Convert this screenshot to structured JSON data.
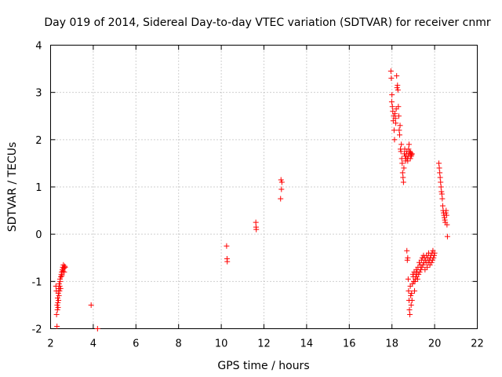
{
  "chart_data": {
    "type": "scatter",
    "title": "Day 019 of 2014, Sidereal Day-to-day VTEC variation (SDTVAR) for receiver cnmr",
    "xlabel": "GPS time / hours",
    "ylabel": "SDTVAR / TECUs",
    "xlim": [
      2,
      22
    ],
    "ylim": [
      -2,
      4
    ],
    "xticks": [
      "2",
      "4",
      "6",
      "8",
      "10",
      "12",
      "14",
      "16",
      "18",
      "20",
      "22"
    ],
    "yticks": [
      "-2",
      "-1",
      "0",
      "1",
      "2",
      "3",
      "4"
    ],
    "grid": true,
    "marker": "+",
    "color": "#ff0000",
    "series": [
      {
        "name": "SDTVAR",
        "x": [
          2.25,
          2.27,
          2.28,
          2.3,
          2.31,
          2.32,
          2.33,
          2.34,
          2.35,
          2.36,
          2.37,
          2.38,
          2.39,
          2.4,
          2.42,
          2.43,
          2.44,
          2.45,
          2.47,
          2.48,
          2.5,
          2.52,
          2.53,
          2.55,
          2.57,
          2.58,
          2.6,
          2.62,
          2.64,
          2.66,
          2.68,
          3.9,
          4.2,
          10.25,
          10.27,
          10.28,
          11.62,
          11.63,
          11.64,
          12.78,
          12.8,
          12.82,
          12.84,
          17.95,
          17.97,
          17.99,
          18.0,
          18.02,
          18.04,
          18.06,
          18.08,
          18.1,
          18.12,
          18.14,
          18.16,
          18.18,
          18.2,
          18.22,
          18.24,
          18.26,
          18.28,
          18.3,
          18.32,
          18.34,
          18.36,
          18.38,
          18.4,
          18.42,
          18.44,
          18.46,
          18.48,
          18.5,
          18.52,
          18.54,
          18.56,
          18.58,
          18.6,
          18.62,
          18.64,
          18.66,
          18.68,
          18.7,
          18.72,
          18.74,
          18.76,
          18.78,
          18.8,
          18.82,
          18.84,
          18.86,
          18.88,
          18.9,
          18.92,
          18.94,
          18.7,
          18.72,
          18.74,
          18.76,
          18.78,
          18.8,
          18.82,
          18.84,
          18.86,
          18.88,
          18.9,
          18.92,
          18.94,
          18.96,
          18.98,
          19.0,
          19.02,
          19.04,
          19.06,
          19.08,
          19.1,
          19.12,
          19.14,
          19.16,
          19.18,
          19.2,
          19.22,
          19.25,
          19.28,
          19.3,
          19.33,
          19.35,
          19.38,
          19.4,
          19.42,
          19.45,
          19.48,
          19.5,
          19.52,
          19.55,
          19.58,
          19.6,
          19.62,
          19.65,
          19.68,
          19.7,
          19.72,
          19.75,
          19.78,
          19.8,
          19.82,
          19.85,
          19.88,
          19.9,
          19.92,
          19.95,
          19.98,
          20.0,
          20.2,
          20.22,
          20.24,
          20.26,
          20.28,
          20.3,
          20.32,
          20.34,
          20.36,
          20.38,
          20.4,
          20.42,
          20.44,
          20.46,
          20.48,
          20.5,
          20.52,
          20.54,
          20.56,
          20.58,
          20.6
        ],
        "y": [
          -1.1,
          -1.2,
          -1.7,
          -1.95,
          -1.5,
          -1.6,
          -1.35,
          -1.45,
          -1.55,
          -1.25,
          -1.4,
          -1.15,
          -1.3,
          -1.05,
          -1.2,
          -1.1,
          -0.95,
          -1.0,
          -1.15,
          -0.9,
          -0.85,
          -0.8,
          -0.88,
          -0.75,
          -0.7,
          -0.78,
          -0.65,
          -0.72,
          -0.8,
          -0.68,
          -0.7,
          -1.5,
          -2.0,
          -0.25,
          -0.52,
          -0.58,
          0.25,
          0.15,
          0.1,
          0.75,
          1.15,
          0.95,
          1.1,
          3.45,
          3.3,
          2.8,
          2.95,
          2.7,
          2.6,
          2.4,
          2.5,
          2.2,
          2.0,
          2.55,
          2.45,
          2.35,
          2.65,
          3.35,
          3.1,
          3.15,
          3.05,
          2.7,
          2.5,
          2.2,
          2.1,
          2.3,
          1.8,
          1.75,
          1.9,
          1.6,
          1.5,
          1.3,
          1.2,
          1.1,
          1.4,
          1.7,
          1.8,
          1.65,
          1.55,
          1.6,
          1.7,
          1.75,
          1.6,
          1.55,
          1.65,
          1.8,
          1.9,
          1.7,
          1.75,
          1.6,
          1.72,
          1.65,
          1.68,
          1.7,
          -0.35,
          -0.55,
          -0.5,
          -0.95,
          -1.2,
          -1.4,
          -1.6,
          -1.7,
          -1.1,
          -1.3,
          -1.5,
          -1.25,
          -1.4,
          -1.05,
          -0.85,
          -0.9,
          -1.0,
          -0.8,
          -1.2,
          -1.0,
          -0.95,
          -0.85,
          -0.75,
          -0.9,
          -0.8,
          -0.95,
          -0.7,
          -0.85,
          -0.6,
          -0.8,
          -0.65,
          -0.75,
          -0.55,
          -0.7,
          -0.5,
          -0.65,
          -0.45,
          -0.6,
          -0.5,
          -0.75,
          -0.55,
          -0.6,
          -0.45,
          -0.7,
          -0.5,
          -0.6,
          -0.4,
          -0.55,
          -0.65,
          -0.5,
          -0.45,
          -0.6,
          -0.4,
          -0.55,
          -0.35,
          -0.5,
          -0.45,
          -0.4,
          1.5,
          1.4,
          1.3,
          1.2,
          1.1,
          1.0,
          0.9,
          0.85,
          0.75,
          0.6,
          0.5,
          0.45,
          0.4,
          0.35,
          0.3,
          0.25,
          0.45,
          0.5,
          0.4,
          0.2,
          -0.05
        ]
      }
    ]
  }
}
